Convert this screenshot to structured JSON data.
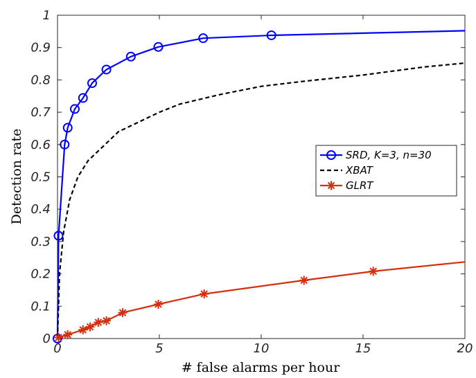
{
  "chart_data": {
    "type": "line",
    "title": "",
    "xlabel": "# false alarms per hour",
    "ylabel": "Detection rate",
    "xlim": [
      0,
      20
    ],
    "ylim": [
      0,
      1
    ],
    "xticks": [
      "0",
      "5",
      "10",
      "15",
      "20"
    ],
    "yticks": [
      "0",
      "0.1",
      "0.2",
      "0.3",
      "0.4",
      "0.5",
      "0.6",
      "0.7",
      "0.8",
      "0.9",
      "1"
    ],
    "grid": false,
    "legend_position": "center-right",
    "series": [
      {
        "name": "SRD, K=3, n=30",
        "color": "#0000ff",
        "line_style": "solid",
        "marker": "circle",
        "x": [
          0,
          0.05,
          0.35,
          0.5,
          0.85,
          1.25,
          1.7,
          2.4,
          3.6,
          4.95,
          7.15,
          10.5,
          20
        ],
        "y": [
          0,
          0.318,
          0.6,
          0.652,
          0.71,
          0.744,
          0.79,
          0.832,
          0.872,
          0.902,
          0.929,
          0.938,
          0.952
        ],
        "markers_at": [
          0,
          1,
          2,
          3,
          4,
          5,
          6,
          7,
          8,
          9,
          10,
          11
        ]
      },
      {
        "name": "XBAT",
        "color": "#000000",
        "line_style": "dashed",
        "marker": "none",
        "x": [
          0,
          0.1,
          0.3,
          0.6,
          1.0,
          1.5,
          2.0,
          3.0,
          4.0,
          5.0,
          6.0,
          8.0,
          10.0,
          12.0,
          15.0,
          18.0,
          20.0
        ],
        "y": [
          0,
          0.2,
          0.33,
          0.43,
          0.5,
          0.55,
          0.58,
          0.64,
          0.67,
          0.7,
          0.725,
          0.755,
          0.78,
          0.795,
          0.815,
          0.84,
          0.852
        ]
      },
      {
        "name": "GLRT",
        "color": "#d62d0b",
        "line_style": "solid",
        "marker": "asterisk",
        "x": [
          0,
          0.05,
          0.5,
          1.25,
          1.6,
          2.0,
          2.4,
          3.2,
          4.95,
          7.2,
          12.1,
          15.5,
          20
        ],
        "y": [
          0,
          0.003,
          0.012,
          0.027,
          0.036,
          0.05,
          0.055,
          0.08,
          0.106,
          0.138,
          0.18,
          0.208,
          0.237
        ],
        "markers_at": [
          1,
          2,
          3,
          4,
          5,
          6,
          7,
          8,
          9,
          10,
          11
        ]
      }
    ]
  }
}
